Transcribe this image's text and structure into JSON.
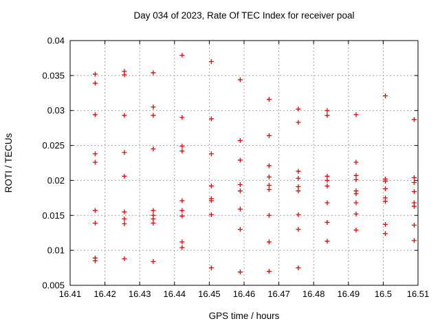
{
  "chart_data": {
    "type": "scatter",
    "title": "Day 034 of 2023, Rate Of TEC Index for receiver poal",
    "xlabel": "GPS time / hours",
    "ylabel": "ROTI / TECUs",
    "xlim": [
      16.41,
      16.51
    ],
    "ylim": [
      0.005,
      0.04
    ],
    "grid": true,
    "legend": "none",
    "x_ticks": [
      16.41,
      16.42,
      16.43,
      16.44,
      16.45,
      16.46,
      16.47,
      16.48,
      16.49,
      16.5,
      16.51
    ],
    "x_tick_labels": [
      "16.41",
      "16.42",
      "16.43",
      "16.44",
      "16.45",
      "16.46",
      "16.47",
      "16.48",
      "16.49",
      "16.5",
      "16.51"
    ],
    "y_ticks": [
      0.005,
      0.01,
      0.015,
      0.02,
      0.025,
      0.03,
      0.035,
      0.04
    ],
    "y_tick_labels": [
      "0.005",
      "0.01",
      "0.015",
      "0.02",
      "0.025",
      "0.03",
      "0.035",
      "0.04"
    ],
    "marker": {
      "shape": "plus",
      "color": "#ee0000",
      "size": 7
    },
    "colors": {
      "grid": "#a0a0a0",
      "border": "#000000",
      "text": "#000000"
    },
    "series": [
      {
        "name": "ROTI",
        "columns": [
          {
            "x": 16.4172,
            "y": [
              0.0352,
              0.0339,
              0.0294,
              0.0238,
              0.0226,
              0.0157,
              0.0139,
              0.0089,
              0.0085
            ]
          },
          {
            "x": 16.4256,
            "y": [
              0.0356,
              0.0351,
              0.0293,
              0.024,
              0.0206,
              0.0155,
              0.0145,
              0.0138,
              0.0088
            ]
          },
          {
            "x": 16.4339,
            "y": [
              0.0354,
              0.0305,
              0.0293,
              0.0245,
              0.0157,
              0.015,
              0.0145,
              0.0139,
              0.0084
            ]
          },
          {
            "x": 16.4422,
            "y": [
              0.0379,
              0.029,
              0.0249,
              0.0242,
              0.0171,
              0.0157,
              0.0149,
              0.0112,
              0.0104
            ]
          },
          {
            "x": 16.4506,
            "y": [
              0.037,
              0.0288,
              0.0238,
              0.0192,
              0.0174,
              0.0171,
              0.0151,
              0.0075
            ]
          },
          {
            "x": 16.4589,
            "y": [
              0.0344,
              0.0257,
              0.0229,
              0.0194,
              0.0185,
              0.0159,
              0.013,
              0.0069
            ]
          },
          {
            "x": 16.4672,
            "y": [
              0.0316,
              0.0264,
              0.0221,
              0.0205,
              0.0193,
              0.0187,
              0.015,
              0.0112,
              0.007
            ]
          },
          {
            "x": 16.4756,
            "y": [
              0.0302,
              0.0283,
              0.0213,
              0.0203,
              0.0191,
              0.0185,
              0.0151,
              0.013,
              0.0075
            ]
          },
          {
            "x": 16.4839,
            "y": [
              0.03,
              0.0293,
              0.0206,
              0.02,
              0.0192,
              0.0168,
              0.014,
              0.0113
            ]
          },
          {
            "x": 16.4922,
            "y": [
              0.0294,
              0.0226,
              0.0207,
              0.0201,
              0.0185,
              0.0181,
              0.0168,
              0.0152,
              0.0129
            ]
          },
          {
            "x": 16.5006,
            "y": [
              0.0321,
              0.0202,
              0.0199,
              0.0188,
              0.0175,
              0.017,
              0.0137,
              0.0124
            ]
          },
          {
            "x": 16.5089,
            "y": [
              0.0287,
              0.0204,
              0.0197,
              0.0184,
              0.0168,
              0.0163,
              0.0136,
              0.0114
            ]
          }
        ]
      }
    ]
  }
}
